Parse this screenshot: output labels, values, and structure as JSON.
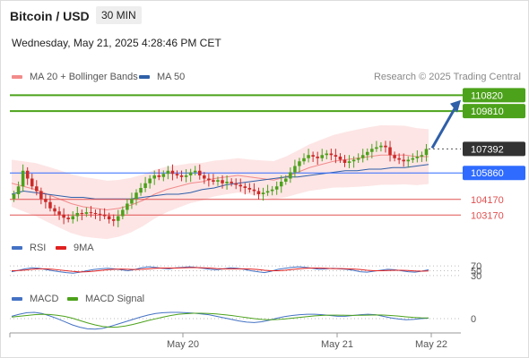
{
  "header": {
    "title": "Bitcoin / USD",
    "timeframe": "30 MIN",
    "datetime": "Wednesday, May 21, 2025 4:28:46 PM CET"
  },
  "credit": "Research © 2025 Trading Central",
  "legends": {
    "price": [
      {
        "label": "MA 20 + Bollinger Bands",
        "color": "#f28b8b"
      },
      {
        "label": "MA 50",
        "color": "#2f5fa8"
      }
    ],
    "rsi": [
      {
        "label": "RSI",
        "color": "#4472c4"
      },
      {
        "label": "9MA",
        "color": "#e02020"
      }
    ],
    "macd": [
      {
        "label": "MACD",
        "color": "#4472c4"
      },
      {
        "label": "MACD Signal",
        "color": "#4ca21a"
      }
    ]
  },
  "colors": {
    "up": "#4ca21a",
    "down": "#cc2a2a",
    "resistance": "#4ca21a",
    "support": "#e05050",
    "pivot": "#2f6bff",
    "arrow": "#2f5fa8",
    "band": "#fde0e0"
  },
  "chart_data": [
    {
      "type": "candlestick",
      "title": "Bitcoin / USD",
      "timeframe": "30 MIN",
      "x_ticks": [
        "May 20",
        "May 21",
        "May 22"
      ],
      "ylim": [
        102500,
        111300
      ],
      "levels": [
        {
          "value": 110820,
          "label": "110820",
          "kind": "resistance"
        },
        {
          "value": 109810,
          "label": "109810",
          "kind": "resistance"
        },
        {
          "value": 107392,
          "label": "107392",
          "kind": "last"
        },
        {
          "value": 105860,
          "label": "105860",
          "kind": "pivot"
        },
        {
          "value": 104170,
          "label": "104170",
          "kind": "support"
        },
        {
          "value": 103170,
          "label": "103170",
          "kind": "support"
        }
      ],
      "arrow": {
        "from": 107450,
        "to": 110400,
        "direction": "up"
      },
      "series": [
        {
          "name": "MA 20 + Bollinger Bands",
          "values": [
            105200,
            105000,
            104800,
            104500,
            104200,
            103900,
            103700,
            103600,
            103500,
            103600,
            103800,
            104100,
            104500,
            104800,
            105000,
            105200,
            105300,
            105500,
            105600,
            105700,
            105600,
            105500,
            105400,
            105600,
            105900,
            106200,
            106400,
            106600,
            106700,
            106800,
            106900,
            107000,
            107000,
            107000,
            106900,
            106900
          ]
        },
        {
          "name": "MA 50",
          "values": [
            104500,
            104700,
            104600,
            104500,
            104400,
            104300,
            104300,
            104200,
            104200,
            104200,
            104200,
            104300,
            104400,
            104500,
            104500,
            104600,
            104800,
            104900,
            105100,
            105200,
            105300,
            105400,
            105500,
            105600,
            105600,
            105700,
            105800,
            105900,
            106000,
            106000,
            106100,
            106100,
            106200,
            106200,
            106300,
            106400
          ]
        }
      ],
      "closes": [
        104500,
        105000,
        106000,
        105500,
        105000,
        104700,
        104200,
        104000,
        103600,
        103400,
        103200,
        103000,
        102900,
        103100,
        103300,
        103250,
        103350,
        103300,
        103250,
        103200,
        103100,
        102900,
        102800,
        103100,
        103500,
        103900,
        104200,
        104600,
        104900,
        105200,
        105500,
        105700,
        105600,
        105800,
        106000,
        105800,
        105700,
        105600,
        105700,
        105900,
        106000,
        105700,
        105500,
        105400,
        105300,
        105400,
        105200,
        105300,
        105200,
        105100,
        105000,
        104900,
        104800,
        104700,
        104500,
        104600,
        104700,
        104800,
        105000,
        105300,
        105500,
        105900,
        106300,
        106600,
        106800,
        107000,
        106900,
        106800,
        107000,
        107100,
        107000,
        106900,
        106700,
        106500,
        106600,
        106700,
        106800,
        107000,
        107200,
        107400,
        107500,
        107600,
        107500,
        107000,
        106800,
        106700,
        106600,
        106700,
        106800,
        106900,
        107000,
        107392
      ]
    },
    {
      "type": "line",
      "title": "RSI",
      "ylim": [
        0,
        100
      ],
      "levels": [
        70,
        50,
        30
      ],
      "level_labels": [
        "70",
        "50",
        "30"
      ],
      "series": [
        {
          "name": "RSI",
          "values": [
            46,
            52,
            58,
            62,
            60,
            55,
            50,
            46,
            42,
            40,
            44,
            50,
            55,
            58,
            60,
            58,
            54,
            50,
            55,
            62,
            66,
            64,
            60,
            58,
            62,
            64,
            66,
            64,
            60,
            56,
            54,
            58,
            62,
            60,
            56,
            50,
            46,
            42,
            48,
            56,
            60,
            64,
            66,
            64,
            60,
            56,
            58,
            60,
            58,
            56,
            52,
            46,
            44,
            48,
            52,
            56,
            54,
            50,
            46,
            44,
            48,
            54
          ]
        },
        {
          "name": "9MA",
          "values": [
            50,
            51,
            53,
            56,
            58,
            58,
            56,
            53,
            50,
            47,
            45,
            46,
            48,
            51,
            54,
            56,
            57,
            56,
            55,
            56,
            58,
            60,
            61,
            61,
            61,
            62,
            63,
            63,
            62,
            61,
            59,
            58,
            58,
            58,
            58,
            57,
            55,
            52,
            50,
            50,
            52,
            55,
            58,
            60,
            61,
            61,
            60,
            59,
            59,
            58,
            57,
            55,
            52,
            50,
            50,
            51,
            52,
            52,
            51,
            49,
            48,
            49
          ]
        }
      ]
    },
    {
      "type": "line",
      "title": "MACD",
      "levels": [
        0
      ],
      "level_labels": [
        "0"
      ],
      "ylim": [
        -320,
        250
      ],
      "series": [
        {
          "name": "MACD",
          "values": [
            60,
            110,
            150,
            160,
            130,
            70,
            0,
            -80,
            -160,
            -220,
            -260,
            -270,
            -250,
            -200,
            -140,
            -80,
            -20,
            40,
            90,
            130,
            150,
            160,
            160,
            150,
            140,
            120,
            100,
            60,
            20,
            -20,
            -60,
            -90,
            -100,
            -80,
            -40,
            10,
            50,
            80,
            100,
            110,
            110,
            100,
            80,
            60,
            60,
            80,
            100,
            110,
            100,
            60,
            20,
            -10,
            -30,
            -20,
            0,
            10
          ]
        },
        {
          "name": "MACD Signal",
          "values": [
            40,
            60,
            80,
            100,
            110,
            105,
            85,
            55,
            10,
            -50,
            -110,
            -160,
            -200,
            -220,
            -215,
            -190,
            -150,
            -100,
            -50,
            -5,
            40,
            80,
            110,
            125,
            135,
            135,
            130,
            118,
            100,
            78,
            52,
            25,
            0,
            -20,
            -30,
            -25,
            -10,
            10,
            30,
            50,
            70,
            82,
            88,
            88,
            85,
            82,
            84,
            88,
            92,
            90,
            80,
            64,
            45,
            30,
            20,
            15
          ]
        }
      ]
    }
  ]
}
